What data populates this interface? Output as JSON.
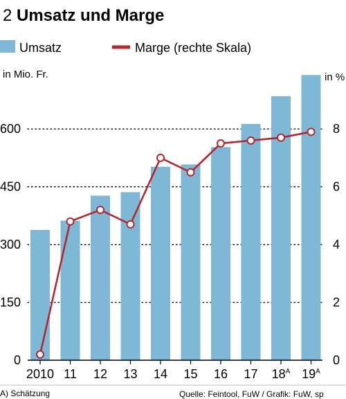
{
  "chart_data": {
    "type": "bar",
    "title_number": "2",
    "title": "Umsatz und Marge",
    "legend": [
      "Umsatz",
      "Marge (rechte Skala)"
    ],
    "y_left_unit": "in Mio. Fr.",
    "y_right_unit": "in %",
    "categories": [
      "2010",
      "11",
      "12",
      "13",
      "14",
      "15",
      "16",
      "17",
      "18",
      "19"
    ],
    "category_superscripts": [
      "",
      "",
      "",
      "",
      "",
      "",
      "",
      "",
      "A",
      "A"
    ],
    "series": [
      {
        "name": "Umsatz",
        "kind": "bar",
        "axis": "left",
        "color": "#7fb8d7",
        "values": [
          338,
          362,
          427,
          436,
          502,
          508,
          553,
          613,
          685,
          740
        ]
      },
      {
        "name": "Marge (rechte Skala)",
        "kind": "line",
        "axis": "right",
        "color": "#b3282d",
        "values": [
          0.2,
          4.8,
          5.2,
          4.7,
          7.0,
          6.5,
          7.5,
          7.6,
          7.7,
          7.9
        ]
      }
    ],
    "y_left_ticks": [
      0,
      150,
      300,
      450,
      600
    ],
    "y_left_ticklabels": [
      "0",
      "150",
      "300",
      "450",
      "600"
    ],
    "y_left_lim": [
      0,
      780
    ],
    "y_right_ticks": [
      0,
      2,
      4,
      6,
      8
    ],
    "y_right_ticklabels": [
      "0",
      "2",
      "4",
      "6",
      "8"
    ],
    "y_right_lim": [
      0,
      10.4
    ],
    "gridlines_at_left_ticks": true,
    "footnote": "A) Schätzung",
    "source": "Quelle: Feintool, FuW / Grafik: FuW, sp"
  }
}
